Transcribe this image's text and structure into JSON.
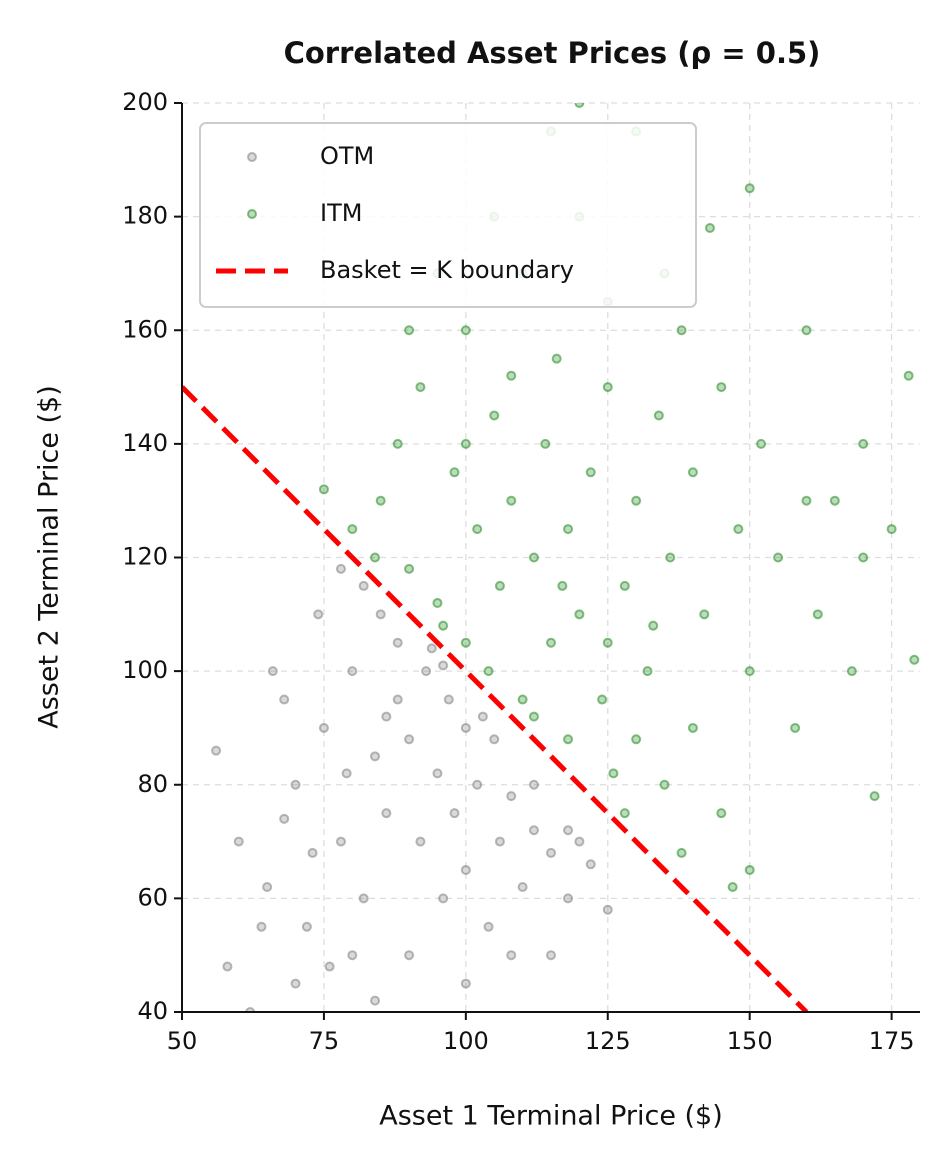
{
  "chart_data": {
    "type": "scatter",
    "title": "Correlated Asset Prices (ρ = 0.5)",
    "x_label": "Asset 1 Terminal Price ($)",
    "y_label": "Asset 2 Terminal Price ($)",
    "xlim": [
      50,
      180
    ],
    "ylim": [
      40,
      200
    ],
    "xticks": [
      50,
      75,
      100,
      125,
      150,
      175
    ],
    "yticks": [
      40,
      60,
      80,
      100,
      120,
      140,
      160,
      180,
      200
    ],
    "grid": true,
    "legend": "upper left",
    "series": [
      {
        "name": "OTM",
        "color": "#808080",
        "x": [
          60,
          65,
          70,
          72,
          75,
          78,
          80,
          82,
          84,
          85,
          86,
          88,
          90,
          90,
          92,
          93,
          95,
          96,
          97,
          98,
          100,
          100,
          102,
          104,
          105,
          106,
          108,
          110,
          112,
          115,
          118,
          120,
          122,
          125,
          68,
          74,
          78,
          82,
          88,
          94,
          70,
          76,
          84,
          56,
          58,
          62,
          64,
          66,
          80,
          100,
          108,
          115,
          118,
          112,
          103,
          96,
          86,
          79,
          73,
          68
        ],
        "y": [
          70,
          62,
          80,
          55,
          90,
          70,
          100,
          60,
          85,
          110,
          75,
          95,
          50,
          88,
          70,
          100,
          82,
          60,
          95,
          75,
          90,
          65,
          80,
          55,
          88,
          70,
          78,
          62,
          72,
          68,
          60,
          70,
          66,
          58,
          95,
          110,
          118,
          115,
          105,
          104,
          45,
          48,
          42,
          86,
          48,
          40,
          55,
          100,
          50,
          45,
          50,
          50,
          72,
          80,
          92,
          101,
          92,
          82,
          68,
          74
        ]
      },
      {
        "name": "ITM",
        "color": "#228b22",
        "x": [
          80,
          85,
          88,
          90,
          92,
          95,
          98,
          100,
          100,
          102,
          104,
          105,
          106,
          108,
          110,
          110,
          112,
          114,
          115,
          116,
          118,
          118,
          120,
          120,
          122,
          124,
          125,
          126,
          128,
          130,
          130,
          132,
          134,
          135,
          136,
          138,
          140,
          140,
          142,
          145,
          145,
          148,
          150,
          150,
          152,
          155,
          158,
          160,
          162,
          165,
          168,
          170,
          172,
          175,
          179,
          178,
          115,
          105,
          95,
          75,
          84,
          96,
          112,
          128,
          138,
          147,
          135,
          125,
          108,
          100,
          90,
          120,
          143,
          130,
          160,
          170,
          150,
          125,
          117,
          133
        ],
        "y": [
          125,
          130,
          140,
          118,
          150,
          112,
          135,
          105,
          160,
          125,
          100,
          145,
          115,
          130,
          95,
          170,
          120,
          140,
          105,
          155,
          88,
          125,
          110,
          180,
          135,
          95,
          150,
          82,
          115,
          130,
          195,
          100,
          145,
          80,
          120,
          160,
          90,
          135,
          110,
          75,
          150,
          125,
          100,
          185,
          140,
          120,
          90,
          160,
          110,
          130,
          100,
          140,
          78,
          125,
          102,
          152,
          195,
          180,
          170,
          132,
          120,
          108,
          92,
          75,
          68,
          62,
          170,
          165,
          152,
          140,
          160,
          200,
          178,
          88,
          130,
          120,
          65,
          105,
          115,
          108
        ]
      }
    ],
    "lines": [
      {
        "name": "Basket = K boundary",
        "color": "#ff0000",
        "x": [
          50,
          160
        ],
        "y": [
          150,
          40
        ]
      }
    ]
  }
}
